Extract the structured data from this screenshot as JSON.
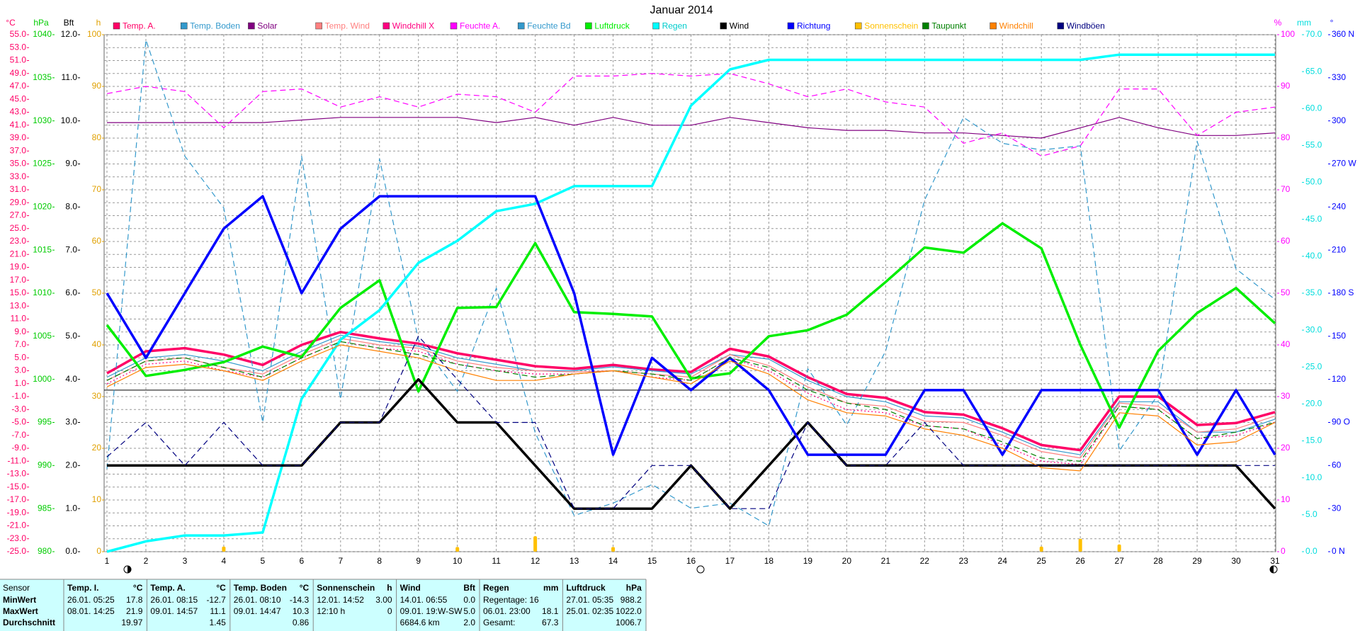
{
  "chart_data": {
    "type": "line",
    "title": "Januar 2014",
    "x": [
      1,
      2,
      3,
      4,
      5,
      6,
      7,
      8,
      9,
      10,
      11,
      12,
      13,
      14,
      15,
      16,
      17,
      18,
      19,
      20,
      21,
      22,
      23,
      24,
      25,
      26,
      27,
      28,
      29,
      30,
      31
    ],
    "xlim": [
      1,
      31
    ],
    "xticks": [
      1,
      2,
      3,
      4,
      5,
      6,
      7,
      8,
      9,
      10,
      11,
      12,
      13,
      14,
      15,
      16,
      17,
      18,
      19,
      20,
      21,
      22,
      23,
      24,
      25,
      26,
      27,
      28,
      29,
      30,
      31
    ],
    "grid": true,
    "axes": [
      {
        "title": "°C",
        "side": "left",
        "color": "#ff0066",
        "lim": [
          -25,
          55
        ],
        "ticks": [
          {
            "value": -25,
            "label": "-25.0"
          },
          {
            "value": -23,
            "label": "-23.0"
          },
          {
            "value": -21,
            "label": "-21.0"
          },
          {
            "value": -19,
            "label": "-19.0"
          },
          {
            "value": -17,
            "label": "-17.0"
          },
          {
            "value": -15,
            "label": "-15.0"
          },
          {
            "value": -13,
            "label": "-13.0"
          },
          {
            "value": -11,
            "label": "-11.0"
          },
          {
            "value": -9,
            "label": "-9.0"
          },
          {
            "value": -7,
            "label": "-7.0"
          },
          {
            "value": -5,
            "label": "-5.0"
          },
          {
            "value": -3,
            "label": "-3.0"
          },
          {
            "value": -1,
            "label": "-1.0"
          },
          {
            "value": 1,
            "label": "1.0"
          },
          {
            "value": 3,
            "label": "3.0"
          },
          {
            "value": 5,
            "label": "5.0"
          },
          {
            "value": 7,
            "label": "7.0"
          },
          {
            "value": 9,
            "label": "9.0"
          },
          {
            "value": 11,
            "label": "11.0"
          },
          {
            "value": 13,
            "label": "13.0"
          },
          {
            "value": 15,
            "label": "15.0"
          },
          {
            "value": 17,
            "label": "17.0"
          },
          {
            "value": 19,
            "label": "19.0"
          },
          {
            "value": 21,
            "label": "21.0"
          },
          {
            "value": 23,
            "label": "23.0"
          },
          {
            "value": 25,
            "label": "25.0"
          },
          {
            "value": 27,
            "label": "27.0"
          },
          {
            "value": 29,
            "label": "29.0"
          },
          {
            "value": 31,
            "label": "31.0"
          },
          {
            "value": 33,
            "label": "33.0"
          },
          {
            "value": 35,
            "label": "35.0"
          },
          {
            "value": 37,
            "label": "37.0"
          },
          {
            "value": 39,
            "label": "39.0"
          },
          {
            "value": 41,
            "label": "41.0"
          },
          {
            "value": 43,
            "label": "43.0"
          },
          {
            "value": 45,
            "label": "45.0"
          },
          {
            "value": 47,
            "label": "47.0"
          },
          {
            "value": 49,
            "label": "49.0"
          },
          {
            "value": 51,
            "label": "51.0"
          },
          {
            "value": 53,
            "label": "53.0"
          },
          {
            "value": 55,
            "label": "55.0"
          }
        ]
      },
      {
        "title": "hPa",
        "side": "left",
        "color": "#00cc00",
        "lim": [
          980,
          1040
        ],
        "ticks": [
          980,
          985,
          990,
          995,
          1000,
          1005,
          1010,
          1015,
          1020,
          1025,
          1030,
          1035,
          1040
        ]
      },
      {
        "title": "Bft",
        "side": "left",
        "color": "#000000",
        "lim": [
          0,
          12
        ],
        "ticks": [
          {
            "value": 0,
            "label": "0.0"
          },
          {
            "value": 1,
            "label": "1.0"
          },
          {
            "value": 2,
            "label": "2.0"
          },
          {
            "value": 3,
            "label": "3.0"
          },
          {
            "value": 4,
            "label": "4.0"
          },
          {
            "value": 5,
            "label": "5.0"
          },
          {
            "value": 6,
            "label": "6.0"
          },
          {
            "value": 7,
            "label": "7.0"
          },
          {
            "value": 8,
            "label": "8.0"
          },
          {
            "value": 9,
            "label": "9.0"
          },
          {
            "value": 10,
            "label": "10.0"
          },
          {
            "value": 11,
            "label": "11.0"
          },
          {
            "value": 12,
            "label": "12.0"
          }
        ]
      },
      {
        "title": "h",
        "side": "left",
        "color": "#e0a000",
        "lim": [
          0,
          100
        ],
        "ticks": [
          0,
          10,
          20,
          30,
          40,
          50,
          60,
          70,
          80,
          90,
          100
        ]
      },
      {
        "title": "%",
        "side": "right",
        "color": "#ff00ff",
        "lim": [
          0,
          100
        ],
        "ticks": [
          0,
          10,
          20,
          30,
          40,
          50,
          60,
          70,
          80,
          90,
          100
        ]
      },
      {
        "title": "mm",
        "side": "right",
        "color": "#00dddd",
        "lim": [
          0,
          70
        ],
        "ticks": [
          {
            "value": 0,
            "label": "0.0"
          },
          {
            "value": 5,
            "label": "5.0"
          },
          {
            "value": 10,
            "label": "10.0"
          },
          {
            "value": 15,
            "label": "15.0"
          },
          {
            "value": 20,
            "label": "20.0"
          },
          {
            "value": 25,
            "label": "25.0"
          },
          {
            "value": 30,
            "label": "30.0"
          },
          {
            "value": 35,
            "label": "35.0"
          },
          {
            "value": 40,
            "label": "40.0"
          },
          {
            "value": 45,
            "label": "45.0"
          },
          {
            "value": 50,
            "label": "50.0"
          },
          {
            "value": 55,
            "label": "55.0"
          },
          {
            "value": 60,
            "label": "60.0"
          },
          {
            "value": 65,
            "label": "65.0"
          },
          {
            "value": 70,
            "label": "70.0"
          }
        ]
      },
      {
        "title": "°",
        "side": "right",
        "color": "#0000ff",
        "lim": [
          0,
          360
        ],
        "ticks": [
          {
            "value": 0,
            "label": "0 N"
          },
          30,
          60,
          {
            "value": 90,
            "label": "90 O"
          },
          120,
          150,
          {
            "value": 180,
            "label": "180 S"
          },
          210,
          240,
          {
            "value": 270,
            "label": "270 W"
          },
          300,
          330,
          {
            "value": 360,
            "label": "360 N"
          }
        ]
      }
    ],
    "series": [
      {
        "name": "Temp. A.",
        "color": "#ff0066",
        "axis": "°C",
        "bold": true,
        "values": [
          2.6,
          6.0,
          6.5,
          5.5,
          3.9,
          7.0,
          9.0,
          8.0,
          7.2,
          5.7,
          4.7,
          3.7,
          3.3,
          3.9,
          3.2,
          2.8,
          6.4,
          5.2,
          2.0,
          -0.6,
          -1.2,
          -3.4,
          -3.8,
          -5.9,
          -8.5,
          -9.3,
          -1.0,
          -1.0,
          -5.4,
          -5.1,
          -3.4
        ]
      },
      {
        "name": "Temp. Boden",
        "color": "#3399cc",
        "axis": "°C",
        "values": [
          2.0,
          5.0,
          5.5,
          4.5,
          3.0,
          6.0,
          8.5,
          7.5,
          6.8,
          5.0,
          4.0,
          3.0,
          3.0,
          3.6,
          3.0,
          2.5,
          5.5,
          4.8,
          1.5,
          -1.0,
          -1.8,
          -4.0,
          -4.3,
          -6.5,
          -9.0,
          -10.0,
          -1.8,
          -1.8,
          -6.5,
          -6.5,
          -4.5
        ]
      },
      {
        "name": "Solar",
        "color": "#800080",
        "axis": "%",
        "values": [
          83,
          83,
          83,
          83,
          83,
          83.5,
          84,
          84,
          84,
          84,
          83,
          84,
          82.5,
          84,
          82.5,
          82.5,
          84,
          83,
          82,
          81.5,
          81.5,
          81,
          81,
          80.5,
          80,
          82,
          84,
          82,
          80.5,
          80.5,
          81
        ]
      },
      {
        "name": "Temp. Wind",
        "color": "#ff8080",
        "axis": "°C",
        "values": [
          1.5,
          4.5,
          5.0,
          3.5,
          2.5,
          5.5,
          8.0,
          7.0,
          6.5,
          4.5,
          3.5,
          3.0,
          2.8,
          3.0,
          2.5,
          2.0,
          5.5,
          3.8,
          0.5,
          -2.0,
          -2.5,
          -4.8,
          -5.0,
          -7.0,
          -9.5,
          -10.5,
          -2.0,
          -2.5,
          -6.5,
          -6.0,
          -4.0
        ]
      },
      {
        "name": "Windchill X",
        "color": "#ff0080",
        "axis": "°C",
        "dash": "dotted",
        "values": [
          1.0,
          4.0,
          4.5,
          3.0,
          2.0,
          5.0,
          7.5,
          6.5,
          6.0,
          4.0,
          3.0,
          2.5,
          2.5,
          3.0,
          2.0,
          1.5,
          5.0,
          3.0,
          -0.5,
          -3.0,
          -3.5,
          -5.5,
          -6.0,
          -8.5,
          -11.0,
          -11.5,
          -2.5,
          -3.0,
          -7.5,
          -7.0,
          -5.0
        ]
      },
      {
        "name": "Feuchte A.",
        "color": "#ff00ff",
        "axis": "%",
        "dash": "dashed",
        "values": [
          88.6,
          90,
          89,
          82,
          89,
          89.5,
          86,
          88,
          86,
          88.5,
          88,
          85,
          92,
          92,
          92.5,
          92,
          92.5,
          90.5,
          88,
          89.5,
          87,
          86,
          79,
          81,
          76.5,
          78.5,
          89.5,
          89.5,
          80.5,
          85,
          86
        ]
      },
      {
        "name": "Feuchte Bd",
        "color": "#3399cc",
        "axis": "%",
        "dash": "dashed",
        "values": [
          16,
          99,
          76.5,
          66.5,
          25,
          76.5,
          29.5,
          76,
          41,
          31,
          51,
          23,
          7,
          9.4,
          13,
          8.4,
          9.4,
          5,
          35.4,
          24.5,
          38.8,
          68,
          84,
          79,
          77.7,
          78.5,
          19.5,
          30.4,
          79.4,
          54.7,
          48.8
        ]
      },
      {
        "name": "Luftdruck",
        "color": "#00ee00",
        "axis": "hPa",
        "bold": true,
        "values": [
          1006.3,
          1000.4,
          1001.1,
          1002,
          1003.8,
          1002.6,
          1008.3,
          1011.5,
          998.6,
          1008.3,
          1008.4,
          1015.8,
          1007.8,
          1007.6,
          1007.3,
          1000.1,
          1000.7,
          1005,
          1005.7,
          1007.5,
          1011.3,
          1015.3,
          1014.7,
          1018.1,
          1015.2,
          1004,
          994.4,
          1003.3,
          1007.7,
          1010.6,
          1006.5
        ]
      },
      {
        "name": "Regen",
        "color": "#00ffff",
        "axis": "mm",
        "bold": true,
        "values": [
          0,
          1.4,
          2.2,
          2.2,
          2.6,
          20.7,
          28.7,
          32.7,
          39.1,
          42.1,
          46.1,
          47.1,
          49.5,
          49.5,
          49.5,
          60.4,
          65.3,
          66.6,
          66.6,
          66.6,
          66.6,
          66.6,
          66.6,
          66.6,
          66.6,
          66.6,
          67.3,
          67.3,
          67.3,
          67.3,
          67.3
        ]
      },
      {
        "name": "Wind",
        "color": "#000000",
        "axis": "Bft",
        "bold": true,
        "values": [
          2,
          2,
          2,
          2,
          2,
          2,
          3,
          3,
          4,
          3,
          3,
          2,
          1,
          1,
          1,
          2,
          1,
          2,
          3,
          2,
          2,
          2,
          2,
          2,
          2,
          2,
          2,
          2,
          2,
          2,
          1
        ]
      },
      {
        "name": "Richtung",
        "color": "#0000ff",
        "axis": "°",
        "bold": true,
        "values": [
          180,
          135,
          180,
          225,
          247.5,
          180,
          225,
          247.5,
          247.5,
          247.5,
          247.5,
          247.5,
          180,
          67.5,
          135,
          112.5,
          135,
          112.5,
          67.5,
          67.5,
          67.5,
          112.5,
          112.5,
          67.5,
          112.5,
          112.5,
          112.5,
          112.5,
          67.5,
          112.5,
          67.5
        ]
      },
      {
        "name": "Sonnenschein",
        "color": "#ffc000",
        "axis": "h",
        "type": "bar",
        "values": [
          0,
          0,
          0,
          1.0,
          0,
          0,
          0,
          0,
          0,
          0.9,
          0,
          3.0,
          0,
          0.9,
          0,
          0,
          0,
          0,
          0,
          0,
          0,
          0,
          0,
          0,
          1.0,
          2.5,
          1.4,
          0,
          0,
          0,
          0
        ]
      },
      {
        "name": "Taupunkt",
        "color": "#008000",
        "axis": "°C",
        "dash": "dashed",
        "values": [
          1.5,
          4.5,
          5,
          3.5,
          2,
          5,
          7.5,
          6.5,
          5.5,
          4,
          3,
          2,
          2.5,
          3,
          2.5,
          1.5,
          5,
          3.5,
          0,
          -2,
          -3,
          -5.5,
          -6,
          -8,
          -10.5,
          -11,
          -2.5,
          -3,
          -7.5,
          -6.5,
          -5
        ]
      },
      {
        "name": "Windchill",
        "color": "#ff8000",
        "axis": "°C",
        "values": [
          0.5,
          3.5,
          4,
          3,
          1.5,
          4.5,
          7,
          6,
          5,
          3,
          1.5,
          1.5,
          2.5,
          3,
          2,
          1,
          4.5,
          2.5,
          -1.5,
          -3.5,
          -4,
          -6,
          -7,
          -9,
          -12,
          -12.5,
          -3.5,
          -4,
          -8.5,
          -8,
          -5
        ]
      },
      {
        "name": "Windböen",
        "color": "#000080",
        "axis": "Bft",
        "dash": "dashed",
        "values": [
          2.2,
          3,
          2,
          3,
          2,
          2,
          3,
          3,
          5,
          4,
          3,
          3,
          1,
          1,
          2,
          2,
          1,
          1,
          3,
          2,
          2,
          3,
          2,
          2,
          2,
          2,
          2,
          2,
          2,
          2,
          2
        ]
      }
    ]
  },
  "summary": {
    "row_labels": [
      "Sensor",
      "MinWert",
      "MaxWert",
      "Durchschnitt"
    ],
    "columns": [
      {
        "title": "Temp. I.",
        "unit": "°C",
        "min": {
          "time": "26.01. 05:25",
          "value": "17.8"
        },
        "max": {
          "time": "08.01. 14:25",
          "value": "21.9"
        },
        "avg": {
          "value": "19.97"
        }
      },
      {
        "title": "Temp. A.",
        "unit": "°C",
        "min": {
          "time": "26.01. 08:15",
          "value": "-12.7"
        },
        "max": {
          "time": "09.01. 14:57",
          "value": "11.1"
        },
        "avg": {
          "value": "1.45"
        }
      },
      {
        "title": "Temp. Boden",
        "unit": "°C",
        "min": {
          "time": "26.01. 08:10",
          "value": "-14.3"
        },
        "max": {
          "time": "09.01. 14:47",
          "value": "10.3"
        },
        "avg": {
          "value": "0.86"
        }
      },
      {
        "title": "Sonnenschein",
        "unit": "h",
        "min": {
          "time": "12.01. 14:52",
          "value": "3.00"
        },
        "max": {
          "time": "12:10 h",
          "value": "0"
        }
      },
      {
        "title": "Wind",
        "unit": "Bft",
        "min": {
          "time": "14.01. 06:55",
          "value": "0.0"
        },
        "max": {
          "time": "09.01. 19:W-SW",
          "value": "5.0"
        },
        "avg": {
          "time": "6684.6 km",
          "value": "2.0"
        }
      },
      {
        "title": "Regen",
        "unit": "mm",
        "min": {
          "time": "Regentage: 16"
        },
        "max": {
          "time": "06.01. 23:00",
          "value": "18.1"
        },
        "avg": {
          "time": "Gesamt:",
          "value": "67.3"
        }
      },
      {
        "title": "Luftdruck",
        "unit": "hPa",
        "min": {
          "time": "27.01. 05:35",
          "value": "988.2"
        },
        "max": {
          "time": "25.01. 02:35",
          "value": "1022.0"
        },
        "avg": {
          "value": "1006.7"
        }
      }
    ]
  }
}
